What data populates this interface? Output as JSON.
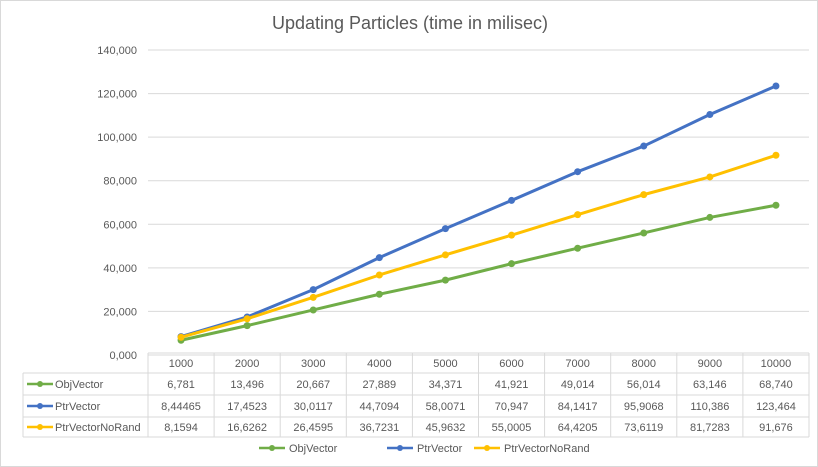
{
  "chart_data": {
    "type": "line",
    "title": "Updating Particles (time in milisec)",
    "categories": [
      "1000",
      "2000",
      "3000",
      "4000",
      "5000",
      "6000",
      "7000",
      "8000",
      "9000",
      "10000"
    ],
    "ylim": [
      0,
      140000
    ],
    "yticks": [
      0,
      20000,
      40000,
      60000,
      80000,
      100000,
      120000,
      140000
    ],
    "ytick_labels": [
      "0,000",
      "20,000",
      "40,000",
      "60,000",
      "80,000",
      "100,000",
      "120,000",
      "140,000"
    ],
    "grid": true,
    "legend": "bottom",
    "series": [
      {
        "name": "ObjVector",
        "color": "#70ad47",
        "values": [
          6781,
          13496,
          20667,
          27889,
          34371,
          41921,
          49014,
          56014,
          63146,
          68740
        ],
        "labels": [
          "6,781",
          "13,496",
          "20,667",
          "27,889",
          "34,371",
          "41,921",
          "49,014",
          "56,014",
          "63,146",
          "68,740"
        ]
      },
      {
        "name": "PtrVector",
        "color": "#4472c4",
        "values": [
          8444.65,
          17452.3,
          30011.7,
          44709.4,
          58007.1,
          70947,
          84141.7,
          95906.8,
          110386,
          123464
        ],
        "labels": [
          "8,44465",
          "17,4523",
          "30,0117",
          "44,7094",
          "58,0071",
          "70,947",
          "84,1417",
          "95,9068",
          "110,386",
          "123,464"
        ]
      },
      {
        "name": "PtrVectorNoRand",
        "color": "#ffc000",
        "values": [
          8159.4,
          16626.2,
          26459.5,
          36723.1,
          45963.2,
          55000.5,
          64420.5,
          73611.9,
          81728.3,
          91676
        ],
        "labels": [
          "8,1594",
          "16,6262",
          "26,4595",
          "36,7231",
          "45,9632",
          "55,0005",
          "64,4205",
          "73,6119",
          "81,7283",
          "91,676"
        ]
      }
    ]
  }
}
